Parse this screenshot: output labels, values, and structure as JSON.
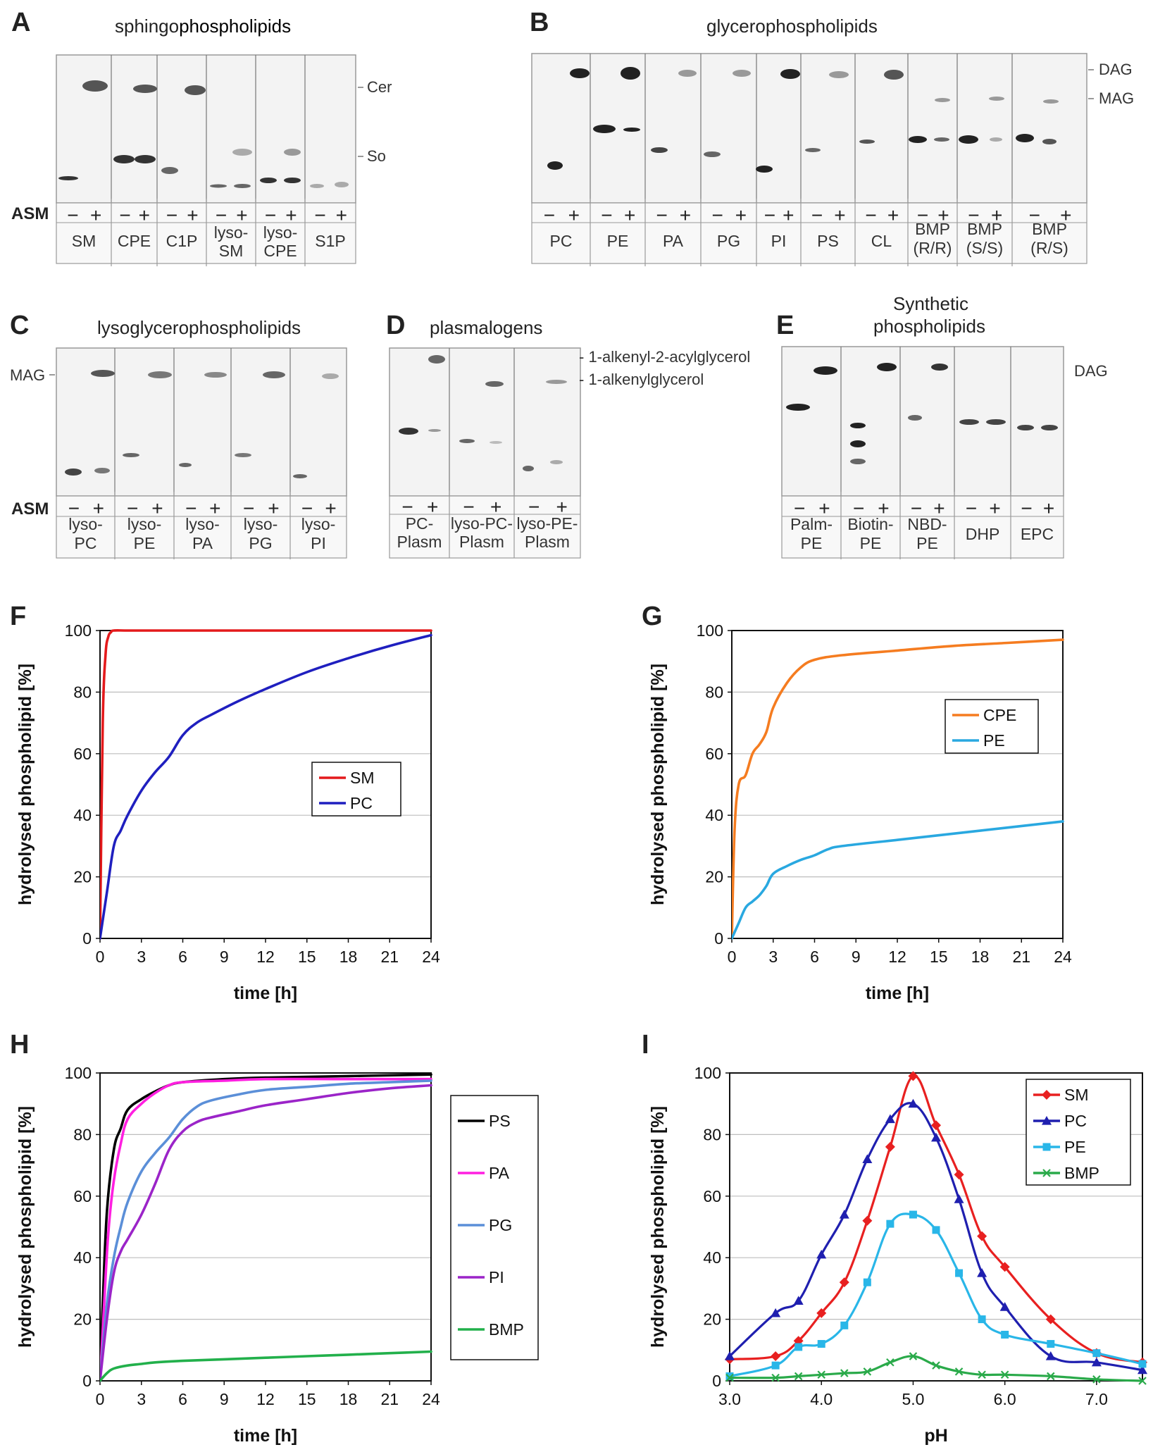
{
  "panels": {
    "A": {
      "letter": "A",
      "title_prefix": "sphingo",
      "title_rest": "phospholipids",
      "bands_right": [
        "Cer",
        "So"
      ],
      "row_label": "ASM",
      "signs": [
        "−",
        "+"
      ],
      "lanes": [
        [
          "SM"
        ],
        [
          "CPE"
        ],
        [
          "C1P"
        ],
        [
          "lyso-",
          "SM"
        ],
        [
          "lyso-",
          "CPE"
        ],
        [
          "S1P"
        ]
      ]
    },
    "B": {
      "letter": "B",
      "title": "glycerophospholipids",
      "bands_right": [
        "DAG",
        "MAG"
      ],
      "signs": [
        "−",
        "+"
      ],
      "lanes": [
        [
          "PC"
        ],
        [
          "PE"
        ],
        [
          "PA"
        ],
        [
          "PG"
        ],
        [
          "PI"
        ],
        [
          "PS"
        ],
        [
          "CL"
        ],
        [
          "BMP",
          "(R/R)"
        ],
        [
          "BMP",
          "(S/S)"
        ],
        [
          "BMP",
          "(R/S)"
        ]
      ]
    },
    "C": {
      "letter": "C",
      "title": "lysoglycerophospholipids",
      "bands_left": [
        "MAG"
      ],
      "row_label": "ASM",
      "signs": [
        "−",
        "+"
      ],
      "lanes": [
        [
          "lyso-",
          "PC"
        ],
        [
          "lyso-",
          "PE"
        ],
        [
          "lyso-",
          "PA"
        ],
        [
          "lyso-",
          "PG"
        ],
        [
          "lyso-",
          "PI"
        ]
      ]
    },
    "D": {
      "letter": "D",
      "title": "plasmalogens",
      "bands_right": [
        "- 1-alkenyl-2-acylglycerol",
        "- 1-alkenylglycerol"
      ],
      "signs": [
        "−",
        "+"
      ],
      "lanes": [
        [
          "PC-",
          "Plasm"
        ],
        [
          "lyso-PC-",
          "Plasm"
        ],
        [
          "lyso-PE-",
          "Plasm"
        ]
      ]
    },
    "E": {
      "letter": "E",
      "title_lines": [
        "Synthetic",
        "phospholipids"
      ],
      "bands_right": [
        "DAG"
      ],
      "signs": [
        "−",
        "+"
      ],
      "lanes": [
        [
          "Palm-",
          "PE"
        ],
        [
          "Biotin-",
          "PE"
        ],
        [
          "NBD-",
          "PE"
        ],
        [
          "DHP"
        ],
        [
          "EPC"
        ]
      ]
    },
    "F": {
      "letter": "F"
    },
    "G": {
      "letter": "G"
    },
    "H": {
      "letter": "H"
    },
    "I": {
      "letter": "I"
    }
  },
  "chart_data": [
    {
      "id": "F",
      "type": "line",
      "xlabel": "time [h]",
      "ylabel": "hydrolysed phospholipid [%]",
      "xlim": [
        0,
        24
      ],
      "ylim": [
        0,
        100
      ],
      "xticks": [
        0,
        3,
        6,
        9,
        12,
        15,
        18,
        21,
        24
      ],
      "yticks": [
        0,
        20,
        40,
        60,
        80,
        100
      ],
      "grid": "horizontal",
      "legend": "middle-right",
      "series": [
        {
          "name": "SM",
          "color": "#e41a1c",
          "x": [
            0,
            0.2,
            0.4,
            0.6,
            0.8,
            1,
            2,
            4,
            8,
            12,
            16,
            20,
            24
          ],
          "y": [
            0,
            70,
            92,
            98,
            99.5,
            100,
            100,
            100,
            100,
            100,
            100,
            100,
            100
          ]
        },
        {
          "name": "PC",
          "color": "#1f1fbf",
          "x": [
            0,
            0.5,
            1,
            1.5,
            2,
            3,
            4,
            5,
            6,
            7,
            8,
            10,
            12,
            15,
            18,
            21,
            24
          ],
          "y": [
            0,
            15,
            30,
            35,
            40,
            48,
            54,
            59,
            66,
            70,
            72.5,
            77,
            81,
            86.5,
            91,
            95,
            98.5
          ]
        }
      ]
    },
    {
      "id": "G",
      "type": "line",
      "xlabel": "time [h]",
      "ylabel": "hydrolysed phospholipid [%]",
      "xlim": [
        0,
        24
      ],
      "ylim": [
        0,
        100
      ],
      "xticks": [
        0,
        3,
        6,
        9,
        12,
        15,
        18,
        21,
        24
      ],
      "yticks": [
        0,
        20,
        40,
        60,
        80,
        100
      ],
      "grid": "horizontal",
      "legend": "upper-right",
      "series": [
        {
          "name": "CPE",
          "color": "#f57c20",
          "x": [
            0,
            0.2,
            0.5,
            1,
            1.5,
            2,
            2.5,
            3,
            4,
            5,
            6,
            8,
            12,
            16,
            20,
            24
          ],
          "y": [
            0,
            35,
            50,
            53,
            60,
            63,
            67,
            75,
            83,
            88,
            90.5,
            92,
            93.5,
            95,
            96,
            97
          ]
        },
        {
          "name": "PE",
          "color": "#29a8e0",
          "x": [
            0,
            0.5,
            1,
            1.5,
            2,
            2.5,
            3,
            4,
            5,
            6,
            7,
            8,
            12,
            16,
            20,
            24
          ],
          "y": [
            0,
            5,
            10,
            12,
            14,
            17,
            21,
            23.5,
            25.5,
            27,
            29,
            30,
            32,
            34,
            36,
            38
          ]
        }
      ]
    },
    {
      "id": "H",
      "type": "line",
      "xlabel": "time [h]",
      "ylabel": "hydrolysed phospholipid [%]",
      "xlim": [
        0,
        24
      ],
      "ylim": [
        0,
        100
      ],
      "xticks": [
        0,
        3,
        6,
        9,
        12,
        15,
        18,
        21,
        24
      ],
      "yticks": [
        0,
        20,
        40,
        60,
        80,
        100
      ],
      "grid": "horizontal",
      "legend": "outside-right",
      "series": [
        {
          "name": "PS",
          "color": "#000000",
          "x": [
            0,
            0.2,
            0.5,
            1,
            1.5,
            2,
            3,
            4,
            5,
            6,
            9,
            12,
            18,
            24
          ],
          "y": [
            0,
            25,
            55,
            75,
            82,
            88,
            91.5,
            94,
            96,
            97,
            98,
            98.5,
            99,
            99.5
          ]
        },
        {
          "name": "PA",
          "color": "#ff1fe0",
          "x": [
            0,
            0.3,
            0.6,
            1,
            1.5,
            2,
            3,
            4,
            5,
            6,
            9,
            12,
            18,
            24
          ],
          "y": [
            0,
            25,
            48,
            65,
            77,
            85,
            90,
            93.5,
            96,
            97,
            97.5,
            98,
            98,
            98
          ]
        },
        {
          "name": "PG",
          "color": "#5b8fd8",
          "x": [
            0,
            0.5,
            1,
            1.5,
            2,
            3,
            4,
            5,
            6,
            7,
            8,
            10,
            12,
            15,
            18,
            21,
            24
          ],
          "y": [
            0,
            25,
            40,
            50,
            58,
            68,
            74,
            79,
            85,
            89,
            91,
            93,
            94.5,
            95.5,
            96.5,
            97,
            97.5
          ]
        },
        {
          "name": "PI",
          "color": "#9b24c8",
          "x": [
            0,
            0.5,
            1,
            1.5,
            2,
            3,
            4,
            5,
            6,
            7,
            8,
            10,
            12,
            15,
            18,
            21,
            24
          ],
          "y": [
            0,
            20,
            35,
            42,
            46,
            54,
            64,
            75,
            81,
            84,
            85.5,
            87.5,
            89.5,
            91.5,
            93.5,
            95,
            96
          ]
        },
        {
          "name": "BMP",
          "color": "#22b04b",
          "x": [
            0,
            0.5,
            1,
            2,
            3,
            4,
            6,
            9,
            12,
            15,
            18,
            21,
            24
          ],
          "y": [
            0,
            2.5,
            4,
            5,
            5.5,
            6,
            6.5,
            7,
            7.5,
            8,
            8.5,
            9,
            9.5
          ]
        }
      ]
    },
    {
      "id": "I",
      "type": "line",
      "xlabel": "pH",
      "ylabel": "hydrolysed phospholipid [%]",
      "xlim": [
        3.0,
        7.5
      ],
      "ylim": [
        0,
        100
      ],
      "xticks": [
        3.0,
        4.0,
        5.0,
        6.0,
        7.0
      ],
      "xticklabels": [
        "3.0",
        "4.0",
        "5.0",
        "6.0",
        "7.0"
      ],
      "yticks": [
        0,
        20,
        40,
        60,
        80,
        100
      ],
      "grid": "horizontal",
      "legend": "upper-right",
      "series": [
        {
          "name": "SM",
          "color": "#e82020",
          "marker": "diamond",
          "x": [
            3.0,
            3.5,
            3.75,
            4.0,
            4.25,
            4.5,
            4.75,
            5.0,
            5.25,
            5.5,
            5.75,
            6.0,
            6.5,
            7.0,
            7.5
          ],
          "y": [
            7,
            8,
            13,
            22,
            32,
            52,
            76,
            99,
            83,
            67,
            47,
            37,
            20,
            9,
            6
          ]
        },
        {
          "name": "PC",
          "color": "#1f1faf",
          "marker": "triangle",
          "x": [
            3.0,
            3.5,
            3.75,
            4.0,
            4.25,
            4.5,
            4.75,
            5.0,
            5.25,
            5.5,
            5.75,
            6.0,
            6.5,
            7.0,
            7.5
          ],
          "y": [
            8,
            22,
            26,
            41,
            54,
            72,
            85,
            90,
            79,
            59,
            35,
            24,
            8,
            6,
            3.5
          ]
        },
        {
          "name": "PE",
          "color": "#29b6e8",
          "marker": "square",
          "x": [
            3.0,
            3.5,
            3.75,
            4.0,
            4.25,
            4.5,
            4.75,
            5.0,
            5.25,
            5.5,
            5.75,
            6.0,
            6.5,
            7.0,
            7.5
          ],
          "y": [
            1.5,
            5,
            11,
            12,
            18,
            32,
            51,
            54,
            49,
            35,
            20,
            15,
            12,
            9,
            5.5
          ]
        },
        {
          "name": "BMP",
          "color": "#2aaa4a",
          "marker": "x",
          "x": [
            3.0,
            3.5,
            3.75,
            4.0,
            4.25,
            4.5,
            4.75,
            5.0,
            5.25,
            5.5,
            5.75,
            6.0,
            6.5,
            7.0,
            7.5
          ],
          "y": [
            1,
            1,
            1.5,
            2,
            2.5,
            3,
            6,
            8,
            5,
            3,
            2,
            2,
            1.5,
            0.5,
            0
          ]
        }
      ]
    }
  ]
}
